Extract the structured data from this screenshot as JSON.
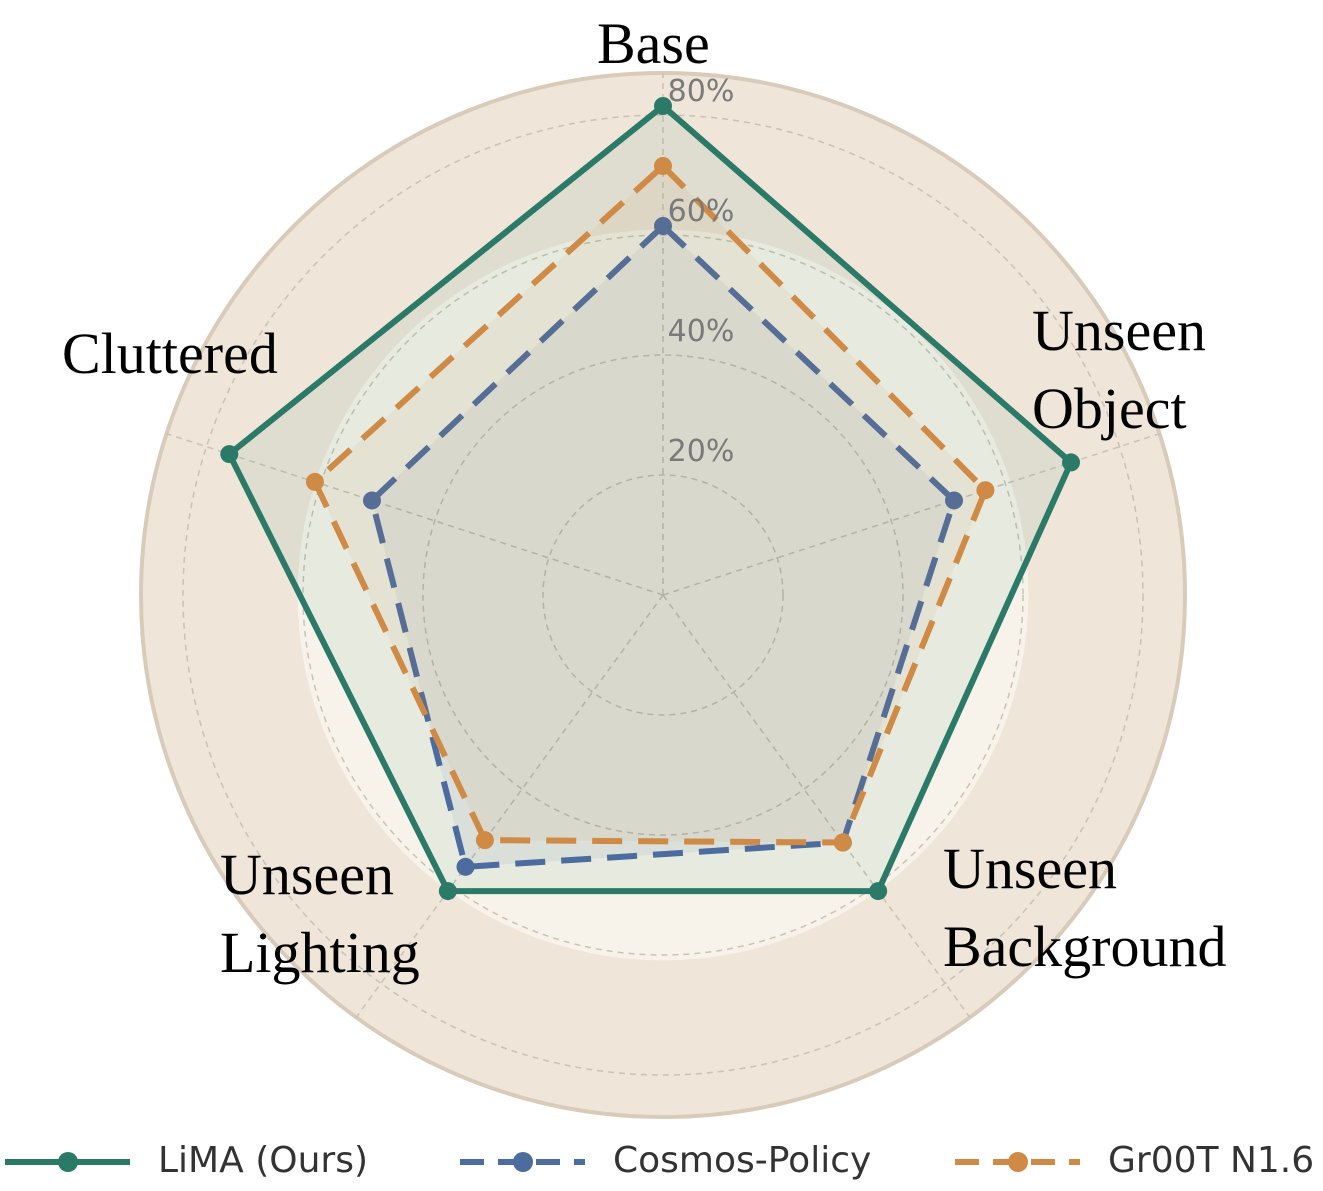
{
  "chart_data": {
    "type": "radar",
    "categories": [
      "Base",
      "Unseen\nObject",
      "Unseen\nBackground",
      "Unseen\nLighting",
      "Cluttered"
    ],
    "series": [
      {
        "name": "LiMA (Ours)",
        "color": "#2b7a68",
        "dashed": false,
        "values": [
          81.5,
          71.5,
          61,
          61,
          76
        ]
      },
      {
        "name": "Cosmos-Policy",
        "color": "#4c6b9e",
        "dashed": true,
        "values": [
          61.5,
          51,
          51,
          56,
          51
        ]
      },
      {
        "name": "Gr00T N1.6",
        "color": "#cf8a45",
        "dashed": true,
        "values": [
          71.5,
          56.5,
          51,
          50.5,
          61
        ]
      }
    ],
    "rlim": [
      0,
      87
    ],
    "rticks": [
      {
        "value": 20,
        "label": "20%"
      },
      {
        "value": 40,
        "label": "40%"
      },
      {
        "value": 60,
        "label": "60%"
      },
      {
        "value": 80,
        "label": "80%"
      }
    ],
    "grid": true,
    "legend": "lower center"
  }
}
